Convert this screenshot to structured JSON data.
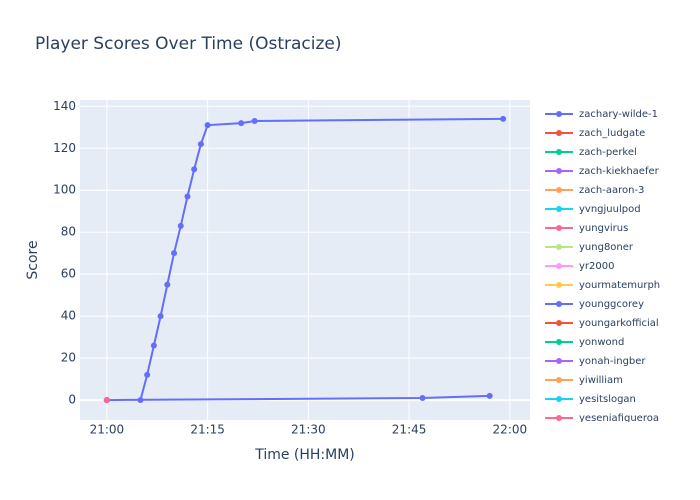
{
  "chart_data": {
    "type": "line",
    "title": "Player Scores Over Time (Ostracize)",
    "x_label": "Time (HH:MM)",
    "y_label": "Score",
    "xlim": [
      "20:56",
      "22:03"
    ],
    "ylim": [
      -9.5,
      143
    ],
    "xticks": [
      "21:00",
      "21:15",
      "21:30",
      "21:45",
      "22:00"
    ],
    "yticks": [
      0,
      20,
      40,
      60,
      80,
      100,
      120,
      140
    ],
    "grid": true,
    "legend": "right",
    "series": [
      {
        "name": "zachary-wilde-1",
        "color": "#636efa",
        "x": [
          "21:05",
          "21:06",
          "21:07",
          "21:08",
          "21:09",
          "21:10",
          "21:11",
          "21:12",
          "21:13",
          "21:14",
          "21:15",
          "21:20",
          "21:22",
          "21:59"
        ],
        "values": [
          0,
          12,
          26,
          40,
          55,
          70,
          83,
          97,
          110,
          122,
          131,
          132,
          133,
          134
        ]
      },
      {
        "name": "zach_ludgate",
        "color": "#EF553B",
        "x": [
          "21:00"
        ],
        "values": [
          0
        ]
      },
      {
        "name": "zach-perkel",
        "color": "#00cc96",
        "x": [
          "21:00"
        ],
        "values": [
          0
        ]
      },
      {
        "name": "zach-kiekhaefer",
        "color": "#ab63fa",
        "x": [
          "21:00"
        ],
        "values": [
          0
        ]
      },
      {
        "name": "zach-aaron-3",
        "color": "#FFA15A",
        "x": [
          "21:00"
        ],
        "values": [
          0
        ]
      },
      {
        "name": "yvngjuulpod",
        "color": "#19d3f3",
        "x": [
          "21:00"
        ],
        "values": [
          0
        ]
      },
      {
        "name": "yungvirus",
        "color": "#FF6692",
        "x": [
          "21:00"
        ],
        "values": [
          0
        ]
      },
      {
        "name": "yung8oner",
        "color": "#B6E880",
        "x": [
          "21:00"
        ],
        "values": [
          0
        ]
      },
      {
        "name": "yr2000",
        "color": "#FF97FF",
        "x": [
          "21:00"
        ],
        "values": [
          0
        ]
      },
      {
        "name": "yourmatemurph",
        "color": "#FECB52",
        "x": [
          "21:00"
        ],
        "values": [
          0
        ]
      },
      {
        "name": "younggcorey",
        "color": "#636efa",
        "x": [
          "21:00",
          "21:47",
          "21:57"
        ],
        "values": [
          0,
          1,
          2
        ]
      },
      {
        "name": "youngarkofficial",
        "color": "#EF553B",
        "x": [
          "21:00"
        ],
        "values": [
          0
        ]
      },
      {
        "name": "yonwond",
        "color": "#00cc96",
        "x": [
          "21:00"
        ],
        "values": [
          0
        ]
      },
      {
        "name": "yonah-ingber",
        "color": "#ab63fa",
        "x": [
          "21:00"
        ],
        "values": [
          0
        ]
      },
      {
        "name": "yiwilliam",
        "color": "#FFA15A",
        "x": [
          "21:00"
        ],
        "values": [
          0
        ]
      },
      {
        "name": "yesitslogan",
        "color": "#19d3f3",
        "x": [
          "21:00"
        ],
        "values": [
          0
        ]
      },
      {
        "name": "yeseniafigueroa",
        "color": "#FF6692",
        "x": [
          "21:00"
        ],
        "values": [
          0
        ]
      }
    ]
  }
}
